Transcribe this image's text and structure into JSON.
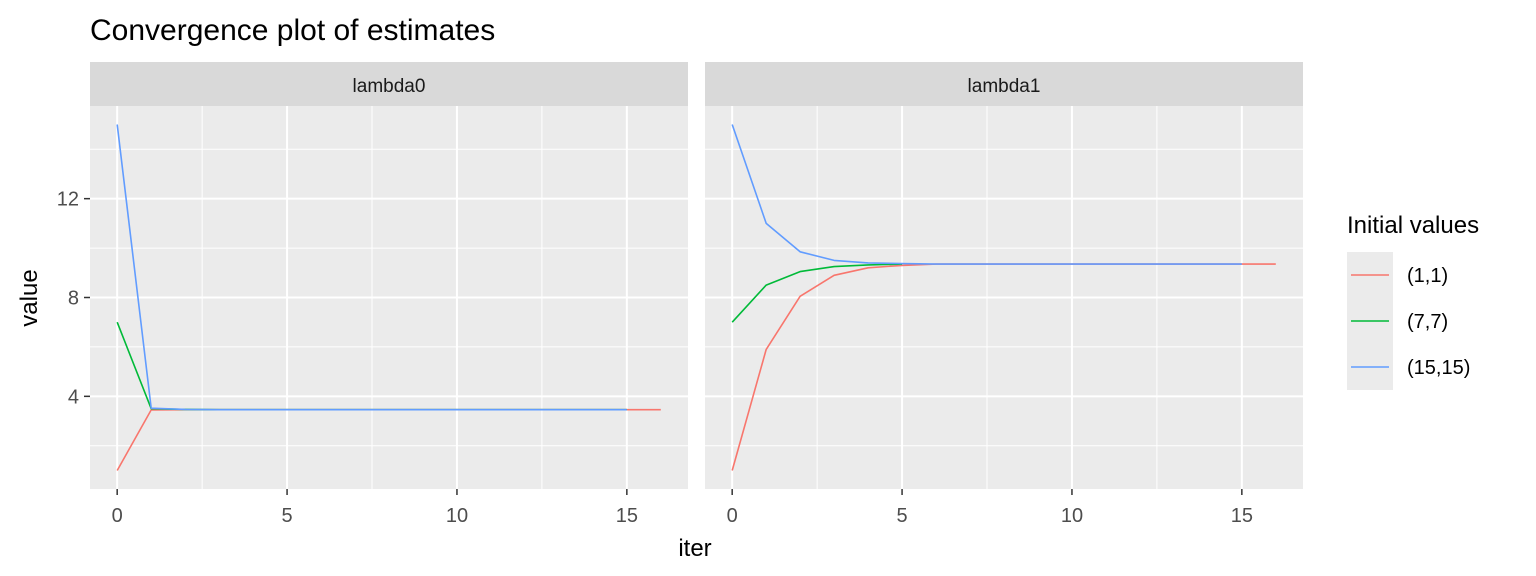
{
  "chart_data": {
    "type": "line",
    "title": "Convergence plot of estimates",
    "xlabel": "iter",
    "ylabel": "value",
    "xlim": [
      -0.8,
      16.8
    ],
    "ylim": [
      0.25,
      15.75
    ],
    "x_ticks": [
      0,
      5,
      10,
      15
    ],
    "y_ticks": [
      4,
      8,
      12
    ],
    "grid": true,
    "legend": {
      "title": "Initial values",
      "position": "right",
      "entries": [
        "(1,1)",
        "(7,7)",
        "(15,15)"
      ]
    },
    "colors": {
      "(1,1)": "#F8766D",
      "(7,7)": "#00BA38",
      "(15,15)": "#619CFF",
      "panel_bg": "#EBEBEB",
      "strip_bg": "#D9D9D9",
      "grid": "#FFFFFF"
    },
    "panels": [
      {
        "name": "lambda0",
        "series": [
          {
            "name": "(1,1)",
            "x": [
              0,
              1,
              2,
              3,
              4,
              5,
              6,
              7,
              8,
              9,
              10,
              11,
              12,
              13,
              14,
              15,
              16
            ],
            "values": [
              1.0,
              3.45,
              3.46,
              3.46,
              3.46,
              3.46,
              3.46,
              3.46,
              3.46,
              3.46,
              3.46,
              3.46,
              3.46,
              3.46,
              3.46,
              3.46,
              3.46
            ]
          },
          {
            "name": "(7,7)",
            "x": [
              0,
              1,
              2,
              3,
              4,
              5,
              6,
              7,
              8,
              9,
              10,
              11,
              12,
              13,
              14,
              15
            ],
            "values": [
              7.0,
              3.5,
              3.47,
              3.46,
              3.46,
              3.46,
              3.46,
              3.46,
              3.46,
              3.46,
              3.46,
              3.46,
              3.46,
              3.46,
              3.46,
              3.46
            ]
          },
          {
            "name": "(15,15)",
            "x": [
              0,
              1,
              2,
              3,
              4,
              5,
              6,
              7,
              8,
              9,
              10,
              11,
              12,
              13,
              14,
              15
            ],
            "values": [
              15.0,
              3.52,
              3.47,
              3.46,
              3.46,
              3.46,
              3.46,
              3.46,
              3.46,
              3.46,
              3.46,
              3.46,
              3.46,
              3.46,
              3.46,
              3.46
            ]
          }
        ]
      },
      {
        "name": "lambda1",
        "series": [
          {
            "name": "(1,1)",
            "x": [
              0,
              1,
              2,
              3,
              4,
              5,
              6,
              7,
              8,
              9,
              10,
              11,
              12,
              13,
              14,
              15,
              16
            ],
            "values": [
              1.0,
              5.9,
              8.05,
              8.9,
              9.2,
              9.3,
              9.35,
              9.35,
              9.35,
              9.35,
              9.35,
              9.35,
              9.35,
              9.35,
              9.35,
              9.35,
              9.35
            ]
          },
          {
            "name": "(7,7)",
            "x": [
              0,
              1,
              2,
              3,
              4,
              5
            ],
            "values": [
              7.0,
              8.5,
              9.05,
              9.25,
              9.32,
              9.35
            ]
          },
          {
            "name": "(15,15)",
            "x": [
              0,
              1,
              2,
              3,
              4,
              5,
              6,
              7,
              8,
              9,
              10,
              11,
              12,
              13,
              14,
              15
            ],
            "values": [
              15.0,
              11.0,
              9.85,
              9.5,
              9.4,
              9.37,
              9.35,
              9.35,
              9.35,
              9.35,
              9.35,
              9.35,
              9.35,
              9.35,
              9.35,
              9.35
            ]
          }
        ]
      }
    ]
  }
}
